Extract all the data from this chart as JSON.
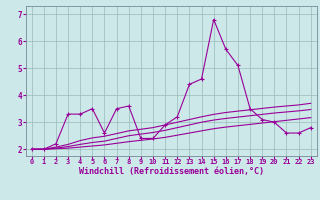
{
  "title": "",
  "xlabel": "Windchill (Refroidissement éolien,°C)",
  "bg_color": "#cce8e8",
  "line_color": "#990099",
  "grid_color": "#99bbbb",
  "spine_color": "#778899",
  "xlim": [
    -0.5,
    23.5
  ],
  "ylim": [
    1.75,
    7.3
  ],
  "xticks": [
    0,
    1,
    2,
    3,
    4,
    5,
    6,
    7,
    8,
    9,
    10,
    11,
    12,
    13,
    14,
    15,
    16,
    17,
    18,
    19,
    20,
    21,
    22,
    23
  ],
  "yticks": [
    2,
    3,
    4,
    5,
    6,
    7
  ],
  "series1_x": [
    0,
    1,
    2,
    3,
    4,
    5,
    6,
    7,
    8,
    9,
    10,
    11,
    12,
    13,
    14,
    15,
    16,
    17,
    18,
    19,
    20,
    21,
    22,
    23
  ],
  "series1_y": [
    2.0,
    2.0,
    2.2,
    3.3,
    3.3,
    3.5,
    2.6,
    3.5,
    3.6,
    2.4,
    2.4,
    2.9,
    3.2,
    4.4,
    4.6,
    6.8,
    5.7,
    5.1,
    3.5,
    3.1,
    3.0,
    2.6,
    2.6,
    2.8
  ],
  "series2_y": [
    2.0,
    2.0,
    2.02,
    2.04,
    2.08,
    2.12,
    2.16,
    2.22,
    2.28,
    2.33,
    2.38,
    2.44,
    2.52,
    2.6,
    2.68,
    2.76,
    2.82,
    2.87,
    2.92,
    2.97,
    3.02,
    3.07,
    3.12,
    3.17
  ],
  "series3_y": [
    2.0,
    2.0,
    2.04,
    2.1,
    2.18,
    2.25,
    2.3,
    2.4,
    2.5,
    2.56,
    2.62,
    2.7,
    2.8,
    2.9,
    3.0,
    3.08,
    3.14,
    3.19,
    3.24,
    3.29,
    3.34,
    3.38,
    3.42,
    3.47
  ],
  "series4_y": [
    2.0,
    2.0,
    2.08,
    2.18,
    2.32,
    2.42,
    2.48,
    2.58,
    2.68,
    2.74,
    2.8,
    2.9,
    3.0,
    3.1,
    3.2,
    3.29,
    3.36,
    3.41,
    3.46,
    3.51,
    3.56,
    3.6,
    3.64,
    3.7
  ],
  "xlabel_fontsize": 6.0,
  "tick_fontsize_x": 5.0,
  "tick_fontsize_y": 5.5,
  "linewidth": 0.8,
  "markersize": 3.5
}
